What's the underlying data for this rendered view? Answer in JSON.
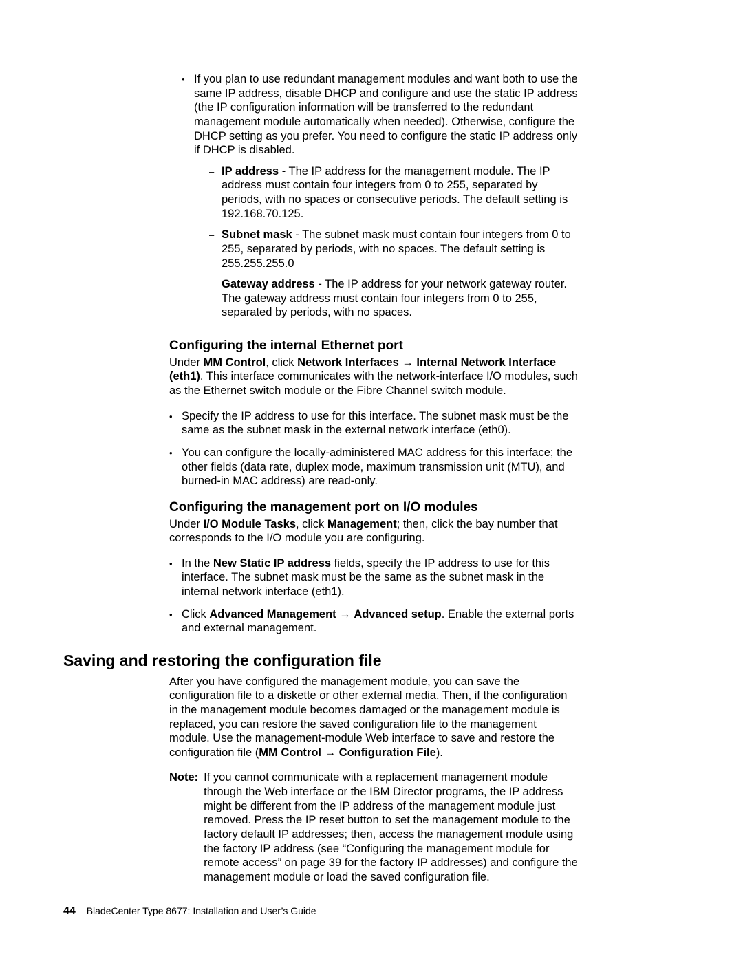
{
  "top_bullet": {
    "text": "If you plan to use redundant management modules and want both to use the same IP address, disable DHCP and configure and use the static IP address (the IP configuration information will be transferred to the redundant management module automatically when needed). Otherwise, configure the DHCP setting as you prefer. You need to configure the static IP address only if DHCP is disabled.",
    "sub": [
      {
        "term": "IP address",
        "text": " - The IP address for the management module. The IP address must contain four integers from 0 to 255, separated by periods, with no spaces or consecutive periods. The default setting is 192.168.70.125."
      },
      {
        "term": "Subnet mask",
        "text": " - The subnet mask must contain four integers from 0 to 255, separated by periods, with no spaces. The default setting is 255.255.255.0"
      },
      {
        "term": "Gateway address",
        "text": " - The IP address for your network gateway router. The gateway address must contain four integers from 0 to 255, separated by periods, with no spaces."
      }
    ]
  },
  "section_internal": {
    "heading": "Configuring the internal Ethernet port",
    "intro_pre": "Under ",
    "intro_b1": "MM Control",
    "intro_mid1": ", click ",
    "intro_b2": "Network Interfaces",
    "intro_arrow": " → ",
    "intro_b3": "Internal Network Interface (eth1)",
    "intro_post": ". This interface communicates with the network-interface I/O modules, such as the Ethernet switch module or the Fibre Channel switch module.",
    "bullets": [
      "Specify the IP address to use for this interface. The subnet mask must be the same as the subnet mask in the external network interface (eth0).",
      "You can configure the locally-administered MAC address for this interface; the other fields (data rate, duplex mode, maximum transmission unit (MTU), and burned-in MAC address) are read-only."
    ]
  },
  "section_io": {
    "heading": "Configuring the management port on I/O modules",
    "intro_pre": "Under ",
    "intro_b1": "I/O Module Tasks",
    "intro_mid1": ", click ",
    "intro_b2": "Management",
    "intro_post": "; then, click the bay number that corresponds to the I/O module you are configuring.",
    "bullet1_pre": "In the ",
    "bullet1_b": "New Static IP address",
    "bullet1_post": " fields, specify the IP address to use for this interface. The subnet mask must be the same as the subnet mask in the internal network interface (eth1).",
    "bullet2_pre": "Click ",
    "bullet2_b1": "Advanced Management",
    "bullet2_arrow": " → ",
    "bullet2_b2": "Advanced setup",
    "bullet2_post": ". Enable the external ports and external management."
  },
  "section_save": {
    "heading": "Saving and restoring the configuration file",
    "para_pre": "After you have configured the management module, you can save the configuration file to a diskette or other external media. Then, if the configuration in the management module becomes damaged or the management module is replaced, you can restore the saved configuration file to the management module. Use the management-module Web interface to save and restore the configuration file (",
    "para_b1": "MM Control",
    "para_arrow": " → ",
    "para_b2": "Configuration File",
    "para_post": ").",
    "note_label": "Note:",
    "note_body": "If you cannot communicate with a replacement management module through the Web interface or the IBM Director programs, the IP address might be different from the IP address of the management module just removed. Press the IP reset button to set the management module to the factory default IP addresses; then, access the management module using the factory IP address (see “Configuring the management module for remote access” on page 39 for the factory IP addresses) and configure the management module or load the saved configuration file."
  },
  "footer": {
    "page": "44",
    "title": "BladeCenter Type 8677: Installation and User’s Guide"
  }
}
